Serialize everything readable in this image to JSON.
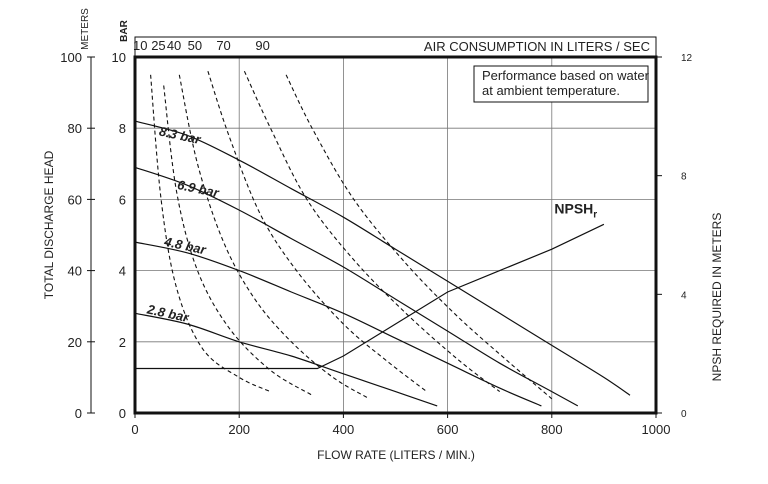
{
  "chart_data": {
    "type": "line",
    "xlabel": "FLOW RATE (LITERS / MIN.)",
    "ylabel_left": "TOTAL DISCHARGE HEAD",
    "ylabel_left_unit": "METERS",
    "ylabel_bar_unit": "BAR",
    "ylabel_right": "NPSH REQUIRED IN METERS",
    "top_axis_label": "AIR CONSUMPTION IN LITERS / SEC",
    "note_line1": "Performance based on water",
    "note_line2": "at ambient temperature.",
    "xlim": [
      0,
      1000
    ],
    "ylim_meters": [
      0,
      100
    ],
    "ylim_bar": [
      0,
      10
    ],
    "ylim_npsh": [
      0,
      12
    ],
    "x_ticks": [
      "0",
      "200",
      "400",
      "600",
      "800",
      "1000"
    ],
    "y_ticks_meters": [
      "0",
      "20",
      "40",
      "60",
      "80",
      "100"
    ],
    "y_ticks_bar": [
      "0",
      "2",
      "4",
      "6",
      "8",
      "10"
    ],
    "y_ticks_npsh": [
      "0",
      "4",
      "8",
      "12"
    ],
    "air_ticks": [
      {
        "label": "10",
        "x": 10
      },
      {
        "label": "25",
        "x": 45
      },
      {
        "label": "40",
        "x": 75
      },
      {
        "label": "50",
        "x": 115
      },
      {
        "label": "70",
        "x": 170
      },
      {
        "label": "90",
        "x": 245
      }
    ],
    "series": [
      {
        "name": "8.3 bar",
        "label": "8.3 bar",
        "label_at": [
          45,
          78
        ],
        "values": [
          [
            0,
            82
          ],
          [
            100,
            78
          ],
          [
            200,
            71
          ],
          [
            300,
            63
          ],
          [
            400,
            55
          ],
          [
            500,
            46
          ],
          [
            600,
            37
          ],
          [
            700,
            28
          ],
          [
            800,
            19
          ],
          [
            900,
            10
          ],
          [
            950,
            5
          ]
        ]
      },
      {
        "name": "6.9 bar",
        "label": "6.9 bar",
        "label_at": [
          80,
          63
        ],
        "values": [
          [
            0,
            69
          ],
          [
            100,
            64
          ],
          [
            200,
            57
          ],
          [
            300,
            49
          ],
          [
            400,
            41
          ],
          [
            500,
            32
          ],
          [
            600,
            23
          ],
          [
            700,
            14
          ],
          [
            800,
            6
          ],
          [
            850,
            2
          ]
        ]
      },
      {
        "name": "4.8 bar",
        "label": "4.8 bar",
        "label_at": [
          55,
          47
        ],
        "values": [
          [
            0,
            48
          ],
          [
            100,
            45
          ],
          [
            200,
            40
          ],
          [
            300,
            34
          ],
          [
            400,
            28
          ],
          [
            500,
            21
          ],
          [
            600,
            14
          ],
          [
            700,
            7
          ],
          [
            780,
            2
          ]
        ]
      },
      {
        "name": "2.8 bar",
        "label": "2.8 bar",
        "label_at": [
          22,
          28
        ],
        "values": [
          [
            0,
            28
          ],
          [
            100,
            25
          ],
          [
            200,
            20
          ],
          [
            300,
            16
          ],
          [
            400,
            11
          ],
          [
            500,
            6
          ],
          [
            580,
            2
          ]
        ]
      },
      {
        "name": "NPSHr",
        "label": "NPSH",
        "label_sub": "r",
        "label_at": [
          805,
          56
        ],
        "values": [
          [
            0,
            12.5
          ],
          [
            350,
            12.5
          ],
          [
            400,
            16
          ],
          [
            500,
            25
          ],
          [
            600,
            34
          ],
          [
            700,
            40
          ],
          [
            800,
            46
          ],
          [
            900,
            53
          ]
        ]
      }
    ],
    "air_curves": [
      [
        [
          30,
          95
        ],
        [
          50,
          60
        ],
        [
          80,
          35
        ],
        [
          130,
          18
        ],
        [
          200,
          10
        ],
        [
          260,
          6
        ]
      ],
      [
        [
          55,
          92
        ],
        [
          80,
          62
        ],
        [
          120,
          40
        ],
        [
          180,
          24
        ],
        [
          260,
          12
        ],
        [
          340,
          5
        ]
      ],
      [
        [
          85,
          95
        ],
        [
          120,
          70
        ],
        [
          170,
          48
        ],
        [
          230,
          32
        ],
        [
          300,
          20
        ],
        [
          380,
          10
        ],
        [
          450,
          4
        ]
      ],
      [
        [
          140,
          96
        ],
        [
          180,
          78
        ],
        [
          240,
          56
        ],
        [
          310,
          40
        ],
        [
          400,
          25
        ],
        [
          480,
          15
        ],
        [
          560,
          6
        ]
      ],
      [
        [
          210,
          96
        ],
        [
          260,
          80
        ],
        [
          330,
          60
        ],
        [
          420,
          43
        ],
        [
          520,
          28
        ],
        [
          620,
          15
        ],
        [
          700,
          6
        ]
      ],
      [
        [
          290,
          95
        ],
        [
          340,
          80
        ],
        [
          420,
          60
        ],
        [
          520,
          42
        ],
        [
          620,
          27
        ],
        [
          720,
          14
        ],
        [
          800,
          4
        ]
      ]
    ],
    "grid": true
  }
}
